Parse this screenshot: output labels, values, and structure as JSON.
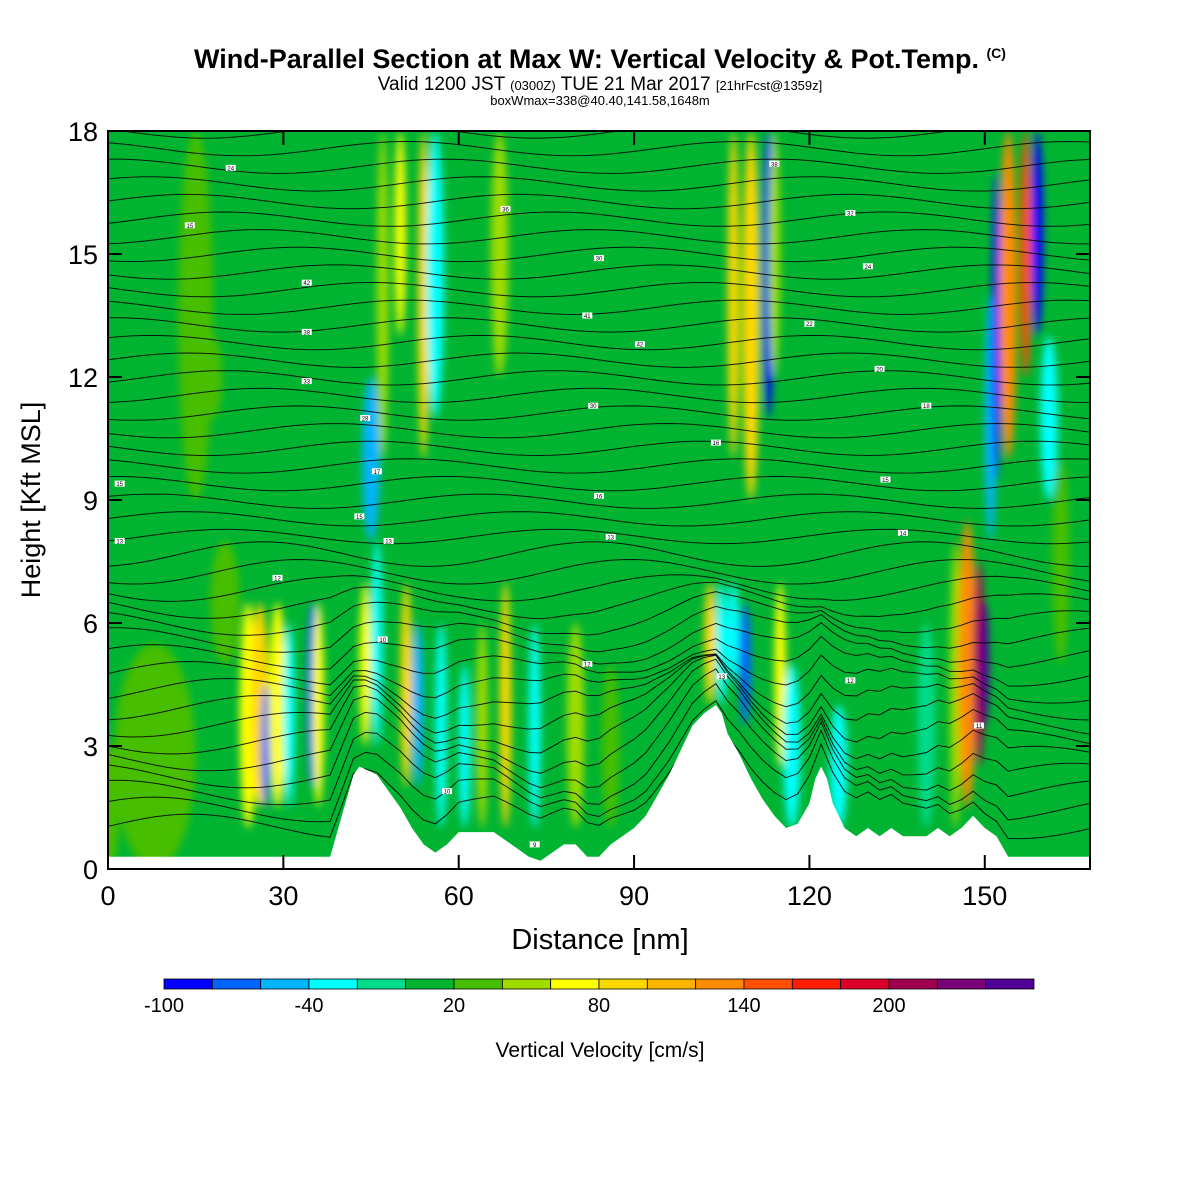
{
  "title": {
    "main": "Wind-Parallel Section at Max W: Vertical Velocity & Pot.Temp.",
    "copyright": "(C)",
    "line2_a": "Valid 1200 JST",
    "line2_b": "(0300Z)",
    "line2_c": "TUE 21 Mar 2017",
    "line2_d": "[21hrFcst@1359z]",
    "line3": "boxWmax=338@40.40,141.58,1648m"
  },
  "chart_data": {
    "type": "heatmap",
    "xlabel": "Distance [nm]",
    "ylabel": "Height [Kft MSL]",
    "xlim": [
      0,
      168
    ],
    "ylim": [
      0,
      18
    ],
    "xticks": [
      0,
      30,
      60,
      90,
      120,
      150
    ],
    "yticks": [
      0,
      3,
      6,
      9,
      12,
      15,
      18
    ],
    "colorbar": {
      "label": "Vertical Velocity [cm/s]",
      "tick_labels": [
        "-100",
        "-40",
        "20",
        "80",
        "140",
        "200"
      ],
      "tick_values": [
        -100,
        -40,
        20,
        80,
        140,
        200
      ],
      "min": -100,
      "step": 20,
      "colors": [
        "#0000ff",
        "#0064ff",
        "#00b4ff",
        "#00ffff",
        "#00dc8c",
        "#00b432",
        "#46be00",
        "#a0dc00",
        "#ffff00",
        "#ffd700",
        "#ffb400",
        "#ff8c00",
        "#ff5000",
        "#ff1e00",
        "#dc0028",
        "#a00050",
        "#780078",
        "#500096"
      ]
    },
    "background_value": 10,
    "vertical_velocity_cells": [
      {
        "x": 0,
        "z": [
          0,
          3.0
        ],
        "w": 4,
        "v": 30
      },
      {
        "x": 8,
        "z": [
          0,
          5.5
        ],
        "w": 14,
        "v": 35
      },
      {
        "x": 15,
        "z": [
          9,
          18
        ],
        "w": 6,
        "v": 25
      },
      {
        "x": 20,
        "z": [
          5,
          8
        ],
        "w": 5,
        "v": 30
      },
      {
        "x": 18,
        "z": [
          11,
          13
        ],
        "w": 3,
        "v": 28
      },
      {
        "x": 24,
        "z": [
          1,
          6.5
        ],
        "w": 3,
        "v": 65
      },
      {
        "x": 26,
        "z": [
          1.5,
          6.5
        ],
        "w": 3,
        "v": 85
      },
      {
        "x": 27,
        "z": [
          1.5,
          4.5
        ],
        "w": 1.5,
        "v": -80
      },
      {
        "x": 29,
        "z": [
          1.5,
          6.5
        ],
        "w": 3,
        "v": 75
      },
      {
        "x": 31,
        "z": [
          1.5,
          6
        ],
        "w": 2,
        "v": -30
      },
      {
        "x": 35,
        "z": [
          2,
          6.5
        ],
        "w": 2,
        "v": -70
      },
      {
        "x": 36,
        "z": [
          1.5,
          6.5
        ],
        "w": 2,
        "v": 60
      },
      {
        "x": 44,
        "z": [
          3,
          7
        ],
        "w": 2,
        "v": 70
      },
      {
        "x": 45,
        "z": [
          8,
          12
        ],
        "w": 3,
        "v": -50
      },
      {
        "x": 46,
        "z": [
          3,
          8
        ],
        "w": 2,
        "v": -30
      },
      {
        "x": 47,
        "z": [
          10,
          18
        ],
        "w": 2,
        "v": 40
      },
      {
        "x": 50,
        "z": [
          13,
          18
        ],
        "w": 2,
        "v": 60
      },
      {
        "x": 51,
        "z": [
          2,
          7
        ],
        "w": 2,
        "v": 80
      },
      {
        "x": 53,
        "z": [
          2,
          6
        ],
        "w": 2,
        "v": -60
      },
      {
        "x": 54,
        "z": [
          10,
          18
        ],
        "w": 2,
        "v": 80
      },
      {
        "x": 56,
        "z": [
          11,
          18
        ],
        "w": 3,
        "v": -40
      },
      {
        "x": 57,
        "z": [
          1,
          6
        ],
        "w": 2,
        "v": -30
      },
      {
        "x": 61,
        "z": [
          1,
          5
        ],
        "w": 2,
        "v": -40
      },
      {
        "x": 64,
        "z": [
          1,
          6
        ],
        "w": 2,
        "v": 40
      },
      {
        "x": 68,
        "z": [
          1,
          7
        ],
        "w": 2,
        "v": 80
      },
      {
        "x": 67,
        "z": [
          12,
          18
        ],
        "w": 3,
        "v": 40
      },
      {
        "x": 73,
        "z": [
          1,
          6
        ],
        "w": 2,
        "v": -30
      },
      {
        "x": 80,
        "z": [
          1,
          6
        ],
        "w": 3,
        "v": 40
      },
      {
        "x": 86,
        "z": [
          1,
          5
        ],
        "w": 3,
        "v": 30
      },
      {
        "x": 103,
        "z": [
          4,
          7
        ],
        "w": 2,
        "v": 80
      },
      {
        "x": 105,
        "z": [
          4,
          7
        ],
        "w": 2,
        "v": -40
      },
      {
        "x": 107,
        "z": [
          4.5,
          7
        ],
        "w": 2,
        "v": -40
      },
      {
        "x": 107,
        "z": [
          10,
          18
        ],
        "w": 2,
        "v": 80
      },
      {
        "x": 109,
        "z": [
          3.5,
          6.5
        ],
        "w": 2,
        "v": -80
      },
      {
        "x": 110,
        "z": [
          9,
          18
        ],
        "w": 3,
        "v": 80
      },
      {
        "x": 113,
        "z": [
          11,
          18
        ],
        "w": 2,
        "v": -90
      },
      {
        "x": 114,
        "z": [
          12,
          18
        ],
        "w": 2,
        "v": 40
      },
      {
        "x": 115,
        "z": [
          2.5,
          7
        ],
        "w": 2,
        "v": 70
      },
      {
        "x": 117,
        "z": [
          1,
          5
        ],
        "w": 3,
        "v": -30
      },
      {
        "x": 125,
        "z": [
          1,
          4
        ],
        "w": 3,
        "v": -30
      },
      {
        "x": 140,
        "z": [
          1,
          6
        ],
        "w": 3,
        "v": -20
      },
      {
        "x": 145,
        "z": [
          1,
          8
        ],
        "w": 2,
        "v": 40
      },
      {
        "x": 147,
        "z": [
          1.5,
          8.5
        ],
        "w": 3,
        "v": 120
      },
      {
        "x": 149,
        "z": [
          2.5,
          7.5
        ],
        "w": 2,
        "v": 200
      },
      {
        "x": 150,
        "z": [
          3.5,
          6.5
        ],
        "w": 1.5,
        "v": 240
      },
      {
        "x": 151,
        "z": [
          8,
          14
        ],
        "w": 2,
        "v": -60
      },
      {
        "x": 152,
        "z": [
          9.5,
          17
        ],
        "w": 1.5,
        "v": -100
      },
      {
        "x": 154,
        "z": [
          10,
          18
        ],
        "w": 3,
        "v": 120
      },
      {
        "x": 157,
        "z": [
          12,
          18
        ],
        "w": 2,
        "v": 140
      },
      {
        "x": 159,
        "z": [
          13,
          18
        ],
        "w": 2,
        "v": -100
      },
      {
        "x": 161,
        "z": [
          9,
          13
        ],
        "w": 3,
        "v": -30
      },
      {
        "x": 163,
        "z": [
          5,
          10
        ],
        "w": 3,
        "v": 30
      }
    ],
    "terrain_height_kft": [
      [
        0,
        0.3
      ],
      [
        38,
        0.3
      ],
      [
        39,
        0.8
      ],
      [
        40,
        1.3
      ],
      [
        41,
        1.8
      ],
      [
        42,
        2.3
      ],
      [
        43,
        2.5
      ],
      [
        46,
        2.3
      ],
      [
        48,
        1.9
      ],
      [
        50,
        1.5
      ],
      [
        52,
        1.0
      ],
      [
        54,
        0.6
      ],
      [
        56,
        0.4
      ],
      [
        58,
        0.6
      ],
      [
        60,
        0.9
      ],
      [
        66,
        0.9
      ],
      [
        68,
        0.7
      ],
      [
        70,
        0.5
      ],
      [
        72,
        0.3
      ],
      [
        74,
        0.2
      ],
      [
        76,
        0.4
      ],
      [
        78,
        0.6
      ],
      [
        80,
        0.6
      ],
      [
        82,
        0.3
      ],
      [
        84,
        0.3
      ],
      [
        86,
        0.6
      ],
      [
        88,
        0.8
      ],
      [
        90,
        1.0
      ],
      [
        92,
        1.3
      ],
      [
        94,
        1.8
      ],
      [
        96,
        2.3
      ],
      [
        98,
        2.9
      ],
      [
        100,
        3.5
      ],
      [
        102,
        3.8
      ],
      [
        104,
        4.0
      ],
      [
        105,
        3.8
      ],
      [
        106,
        3.3
      ],
      [
        108,
        2.8
      ],
      [
        110,
        2.2
      ],
      [
        112,
        1.7
      ],
      [
        114,
        1.3
      ],
      [
        116,
        1.0
      ],
      [
        118,
        1.1
      ],
      [
        120,
        1.6
      ],
      [
        121,
        2.2
      ],
      [
        122,
        2.5
      ],
      [
        123,
        2.2
      ],
      [
        124,
        1.6
      ],
      [
        126,
        1.0
      ],
      [
        128,
        0.8
      ],
      [
        130,
        1.0
      ],
      [
        132,
        0.8
      ],
      [
        134,
        1.0
      ],
      [
        136,
        0.8
      ],
      [
        140,
        0.8
      ],
      [
        142,
        1.0
      ],
      [
        144,
        0.8
      ],
      [
        146,
        1.0
      ],
      [
        148,
        1.3
      ],
      [
        150,
        1.0
      ],
      [
        152,
        0.8
      ],
      [
        154,
        0.3
      ],
      [
        168,
        0.3
      ]
    ],
    "theta_contour_labels": [
      {
        "x": 21,
        "z": 17.1,
        "text": "24"
      },
      {
        "x": 14,
        "z": 15.7,
        "text": "15"
      },
      {
        "x": 34,
        "z": 14.3,
        "text": "42"
      },
      {
        "x": 34,
        "z": 13.1,
        "text": "38"
      },
      {
        "x": 34,
        "z": 11.9,
        "text": "33"
      },
      {
        "x": 44,
        "z": 11.0,
        "text": "28"
      },
      {
        "x": 2,
        "z": 9.4,
        "text": "15"
      },
      {
        "x": 2,
        "z": 8.0,
        "text": "13"
      },
      {
        "x": 43,
        "z": 8.6,
        "text": "15"
      },
      {
        "x": 46,
        "z": 9.7,
        "text": "17"
      },
      {
        "x": 48,
        "z": 8.0,
        "text": "13"
      },
      {
        "x": 29,
        "z": 7.1,
        "text": "12"
      },
      {
        "x": 47,
        "z": 5.6,
        "text": "10"
      },
      {
        "x": 68,
        "z": 16.1,
        "text": "36"
      },
      {
        "x": 84,
        "z": 14.9,
        "text": "30"
      },
      {
        "x": 82,
        "z": 13.5,
        "text": "41"
      },
      {
        "x": 91,
        "z": 12.8,
        "text": "42"
      },
      {
        "x": 83,
        "z": 11.3,
        "text": "30"
      },
      {
        "x": 84,
        "z": 9.1,
        "text": "16"
      },
      {
        "x": 86,
        "z": 8.1,
        "text": "13"
      },
      {
        "x": 82,
        "z": 5.0,
        "text": "12"
      },
      {
        "x": 58,
        "z": 1.9,
        "text": "10"
      },
      {
        "x": 73,
        "z": 0.6,
        "text": "9"
      },
      {
        "x": 114,
        "z": 17.2,
        "text": "38"
      },
      {
        "x": 127,
        "z": 16.0,
        "text": "32"
      },
      {
        "x": 130,
        "z": 14.7,
        "text": "24"
      },
      {
        "x": 120,
        "z": 13.3,
        "text": "22"
      },
      {
        "x": 132,
        "z": 12.2,
        "text": "20"
      },
      {
        "x": 140,
        "z": 11.3,
        "text": "18"
      },
      {
        "x": 104,
        "z": 10.4,
        "text": "16"
      },
      {
        "x": 133,
        "z": 9.5,
        "text": "15"
      },
      {
        "x": 136,
        "z": 8.2,
        "text": "14"
      },
      {
        "x": 105,
        "z": 4.7,
        "text": "13"
      },
      {
        "x": 127,
        "z": 4.6,
        "text": "12"
      },
      {
        "x": 149,
        "z": 3.5,
        "text": "11"
      }
    ]
  }
}
